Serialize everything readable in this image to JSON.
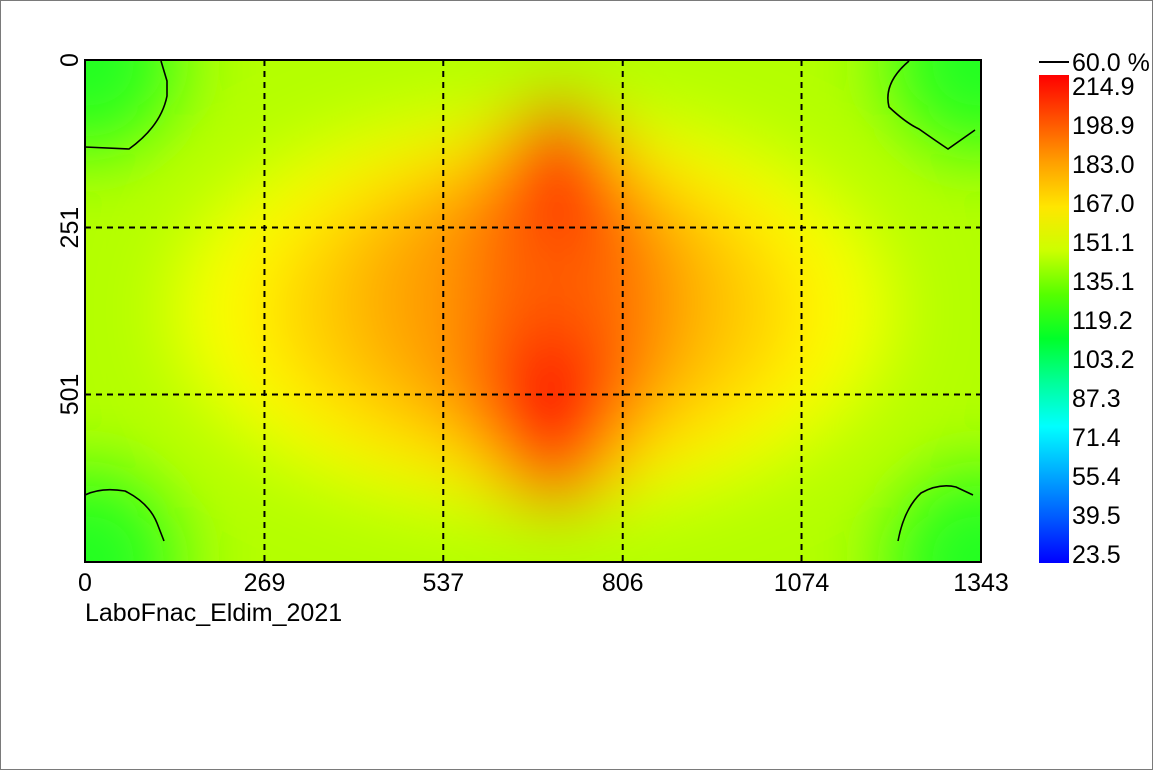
{
  "chart_data": {
    "type": "heatmap",
    "caption": "LaboFnac_Eldim_2021",
    "x_axis": {
      "range": [
        0,
        1343
      ],
      "ticks": [
        "0",
        "269",
        "537",
        "806",
        "1074",
        "1343"
      ]
    },
    "y_axis": {
      "range": [
        0,
        752
      ],
      "ticks": [
        "0",
        "251",
        "501"
      ],
      "inverted": true
    },
    "grid": {
      "style": "dashed",
      "enabled": true
    },
    "contour": {
      "label": "60.0 %",
      "color": "#000000"
    },
    "colorbar": {
      "placement": "right",
      "ticks": [
        "214.9",
        "198.9",
        "183.0",
        "167.0",
        "151.1",
        "135.1",
        "119.2",
        "103.2",
        "87.3",
        "71.4",
        "55.4",
        "39.5",
        "23.5"
      ],
      "colors_top_to_bottom": [
        "#ff0000",
        "#ff6a00",
        "#ffd200",
        "#ffff00",
        "#c8ff00",
        "#50ff00",
        "#00ff32",
        "#00ff9a",
        "#00ffff",
        "#00b4ff",
        "#0064ff",
        "#0000ff"
      ]
    },
    "hotspots": [
      {
        "x": 760,
        "y": 190,
        "value": 212
      },
      {
        "x": 700,
        "y": 500,
        "value": 215
      },
      {
        "x": 735,
        "y": 330,
        "value": 200
      }
    ],
    "min_value": 23.5,
    "max_value": 214.9,
    "edge_value": 155,
    "corner_value": 125
  }
}
